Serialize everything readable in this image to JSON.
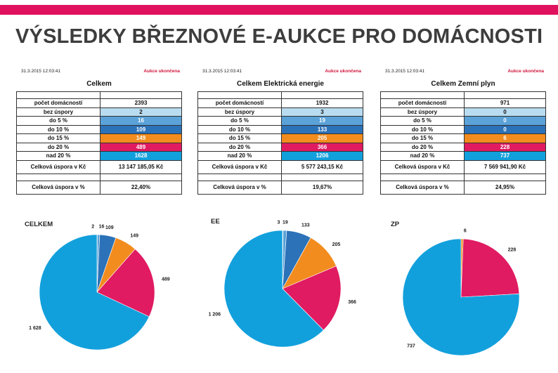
{
  "header": {
    "title": "VÝSLEDKY BŘEZNOVÉ E-AUKCE PRO DOMÁCNOSTI"
  },
  "panels": [
    {
      "timestamp": "31.3.2015 12:03:41",
      "status": "Aukce ukončena",
      "title": "Celkem",
      "rows": [
        {
          "label": "počet domácností",
          "value": "2393"
        },
        {
          "label": "bez úspory",
          "value": "2"
        },
        {
          "label": "do 5 %",
          "value": "16"
        },
        {
          "label": "do 10 %",
          "value": "109"
        },
        {
          "label": "do 15 %",
          "value": "149"
        },
        {
          "label": "do 20 %",
          "value": "489"
        },
        {
          "label": "nad 20 %",
          "value": "1628"
        }
      ],
      "savings_czk_label": "Celková úspora v Kč",
      "savings_czk": "13 147 185,05 Kč",
      "savings_pct_label": "Celková úspora v %",
      "savings_pct": "22,40%"
    },
    {
      "timestamp": "31.3.2015 12:03:41",
      "status": "Aukce ukončena",
      "title": "Celkem Elektrická energie",
      "rows": [
        {
          "label": "počet domácností",
          "value": "1932"
        },
        {
          "label": "bez úspory",
          "value": "3"
        },
        {
          "label": "do 5 %",
          "value": "19"
        },
        {
          "label": "do 10 %",
          "value": "133"
        },
        {
          "label": "do 15 %",
          "value": "205"
        },
        {
          "label": "do 20 %",
          "value": "366"
        },
        {
          "label": "nad 20 %",
          "value": "1206"
        }
      ],
      "savings_czk_label": "Celková úspora v Kč",
      "savings_czk": "5 577 243,15 Kč",
      "savings_pct_label": "Celková úspora v %",
      "savings_pct": "19,67%"
    },
    {
      "timestamp": "31.3.2015 12:03:41",
      "status": "Aukce ukončena",
      "title": "Celkem Zemní plyn",
      "rows": [
        {
          "label": "počet domácností",
          "value": "971"
        },
        {
          "label": "bez úspory",
          "value": "0"
        },
        {
          "label": "do 5 %",
          "value": "0"
        },
        {
          "label": "do 10 %",
          "value": "0"
        },
        {
          "label": "do 15 %",
          "value": "6"
        },
        {
          "label": "do 20 %",
          "value": "228"
        },
        {
          "label": "nad 20 %",
          "value": "737"
        }
      ],
      "savings_czk_label": "Celková úspora v Kč",
      "savings_czk": "7 569 941,90 Kč",
      "savings_pct_label": "Celková úspora v %",
      "savings_pct": "24,95%"
    }
  ],
  "colors": {
    "bez_uspory": "#b9dcf0",
    "do_5": "#5aa2d8",
    "do_10": "#2c72b8",
    "do_15": "#f28c1e",
    "do_20": "#e01b62",
    "nad_20": "#12a0dc",
    "accent_bar": "#e0115f"
  },
  "chart_data": [
    {
      "type": "pie",
      "title": "CELKEM",
      "categories": [
        "bez úspory",
        "do 5 %",
        "do 10 %",
        "do 15 %",
        "do 20 %",
        "nad 20 %"
      ],
      "values": [
        2,
        16,
        109,
        149,
        489,
        1628
      ],
      "labels": [
        "2",
        "16",
        "109",
        "149",
        "489",
        "1 628"
      ]
    },
    {
      "type": "pie",
      "title": "EE",
      "categories": [
        "bez úspory",
        "do 5 %",
        "do 10 %",
        "do 15 %",
        "do 20 %",
        "nad 20 %"
      ],
      "values": [
        3,
        19,
        133,
        205,
        366,
        1206
      ],
      "labels": [
        "3",
        "19",
        "133",
        "205",
        "366",
        "1 206"
      ]
    },
    {
      "type": "pie",
      "title": "ZP",
      "categories": [
        "bez úspory",
        "do 5 %",
        "do 10 %",
        "do 15 %",
        "do 20 %",
        "nad 20 %"
      ],
      "values": [
        0,
        0,
        0,
        6,
        228,
        737
      ],
      "labels": [
        "",
        "",
        "",
        "6",
        "228",
        "737"
      ]
    }
  ]
}
